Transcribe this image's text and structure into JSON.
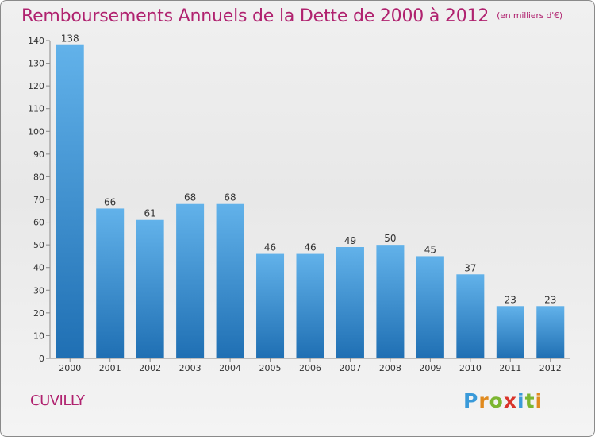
{
  "title": "Remboursements Annuels de la Dette de 2000 à 2012",
  "unit": "(en milliers d'€)",
  "commune": "CUVILLY",
  "logo": {
    "text": "Proxiti",
    "letters": [
      {
        "ch": "P",
        "color": "#3a9ad9"
      },
      {
        "ch": "r",
        "color": "#e08a1e"
      },
      {
        "ch": "o",
        "color": "#7cb631"
      },
      {
        "ch": "x",
        "color": "#d9342b"
      },
      {
        "ch": "i",
        "color": "#3a9ad9"
      },
      {
        "ch": "t",
        "color": "#7cb631"
      },
      {
        "ch": "i",
        "color": "#e08a1e"
      }
    ]
  },
  "colors": {
    "title": "#b0226f",
    "bar_top": "#62b2ea",
    "bar_bottom": "#1f6fb3"
  },
  "chart_data": {
    "type": "bar",
    "categories": [
      "2000",
      "2001",
      "2002",
      "2003",
      "2004",
      "2005",
      "2006",
      "2007",
      "2008",
      "2009",
      "2010",
      "2011",
      "2012"
    ],
    "values": [
      138,
      66,
      61,
      68,
      68,
      46,
      46,
      49,
      50,
      45,
      37,
      23,
      23
    ],
    "ylim": [
      0,
      140
    ],
    "yticks": [
      0,
      10,
      20,
      30,
      40,
      50,
      60,
      70,
      80,
      90,
      100,
      110,
      120,
      130,
      140
    ],
    "grid": false,
    "legend": "none"
  }
}
